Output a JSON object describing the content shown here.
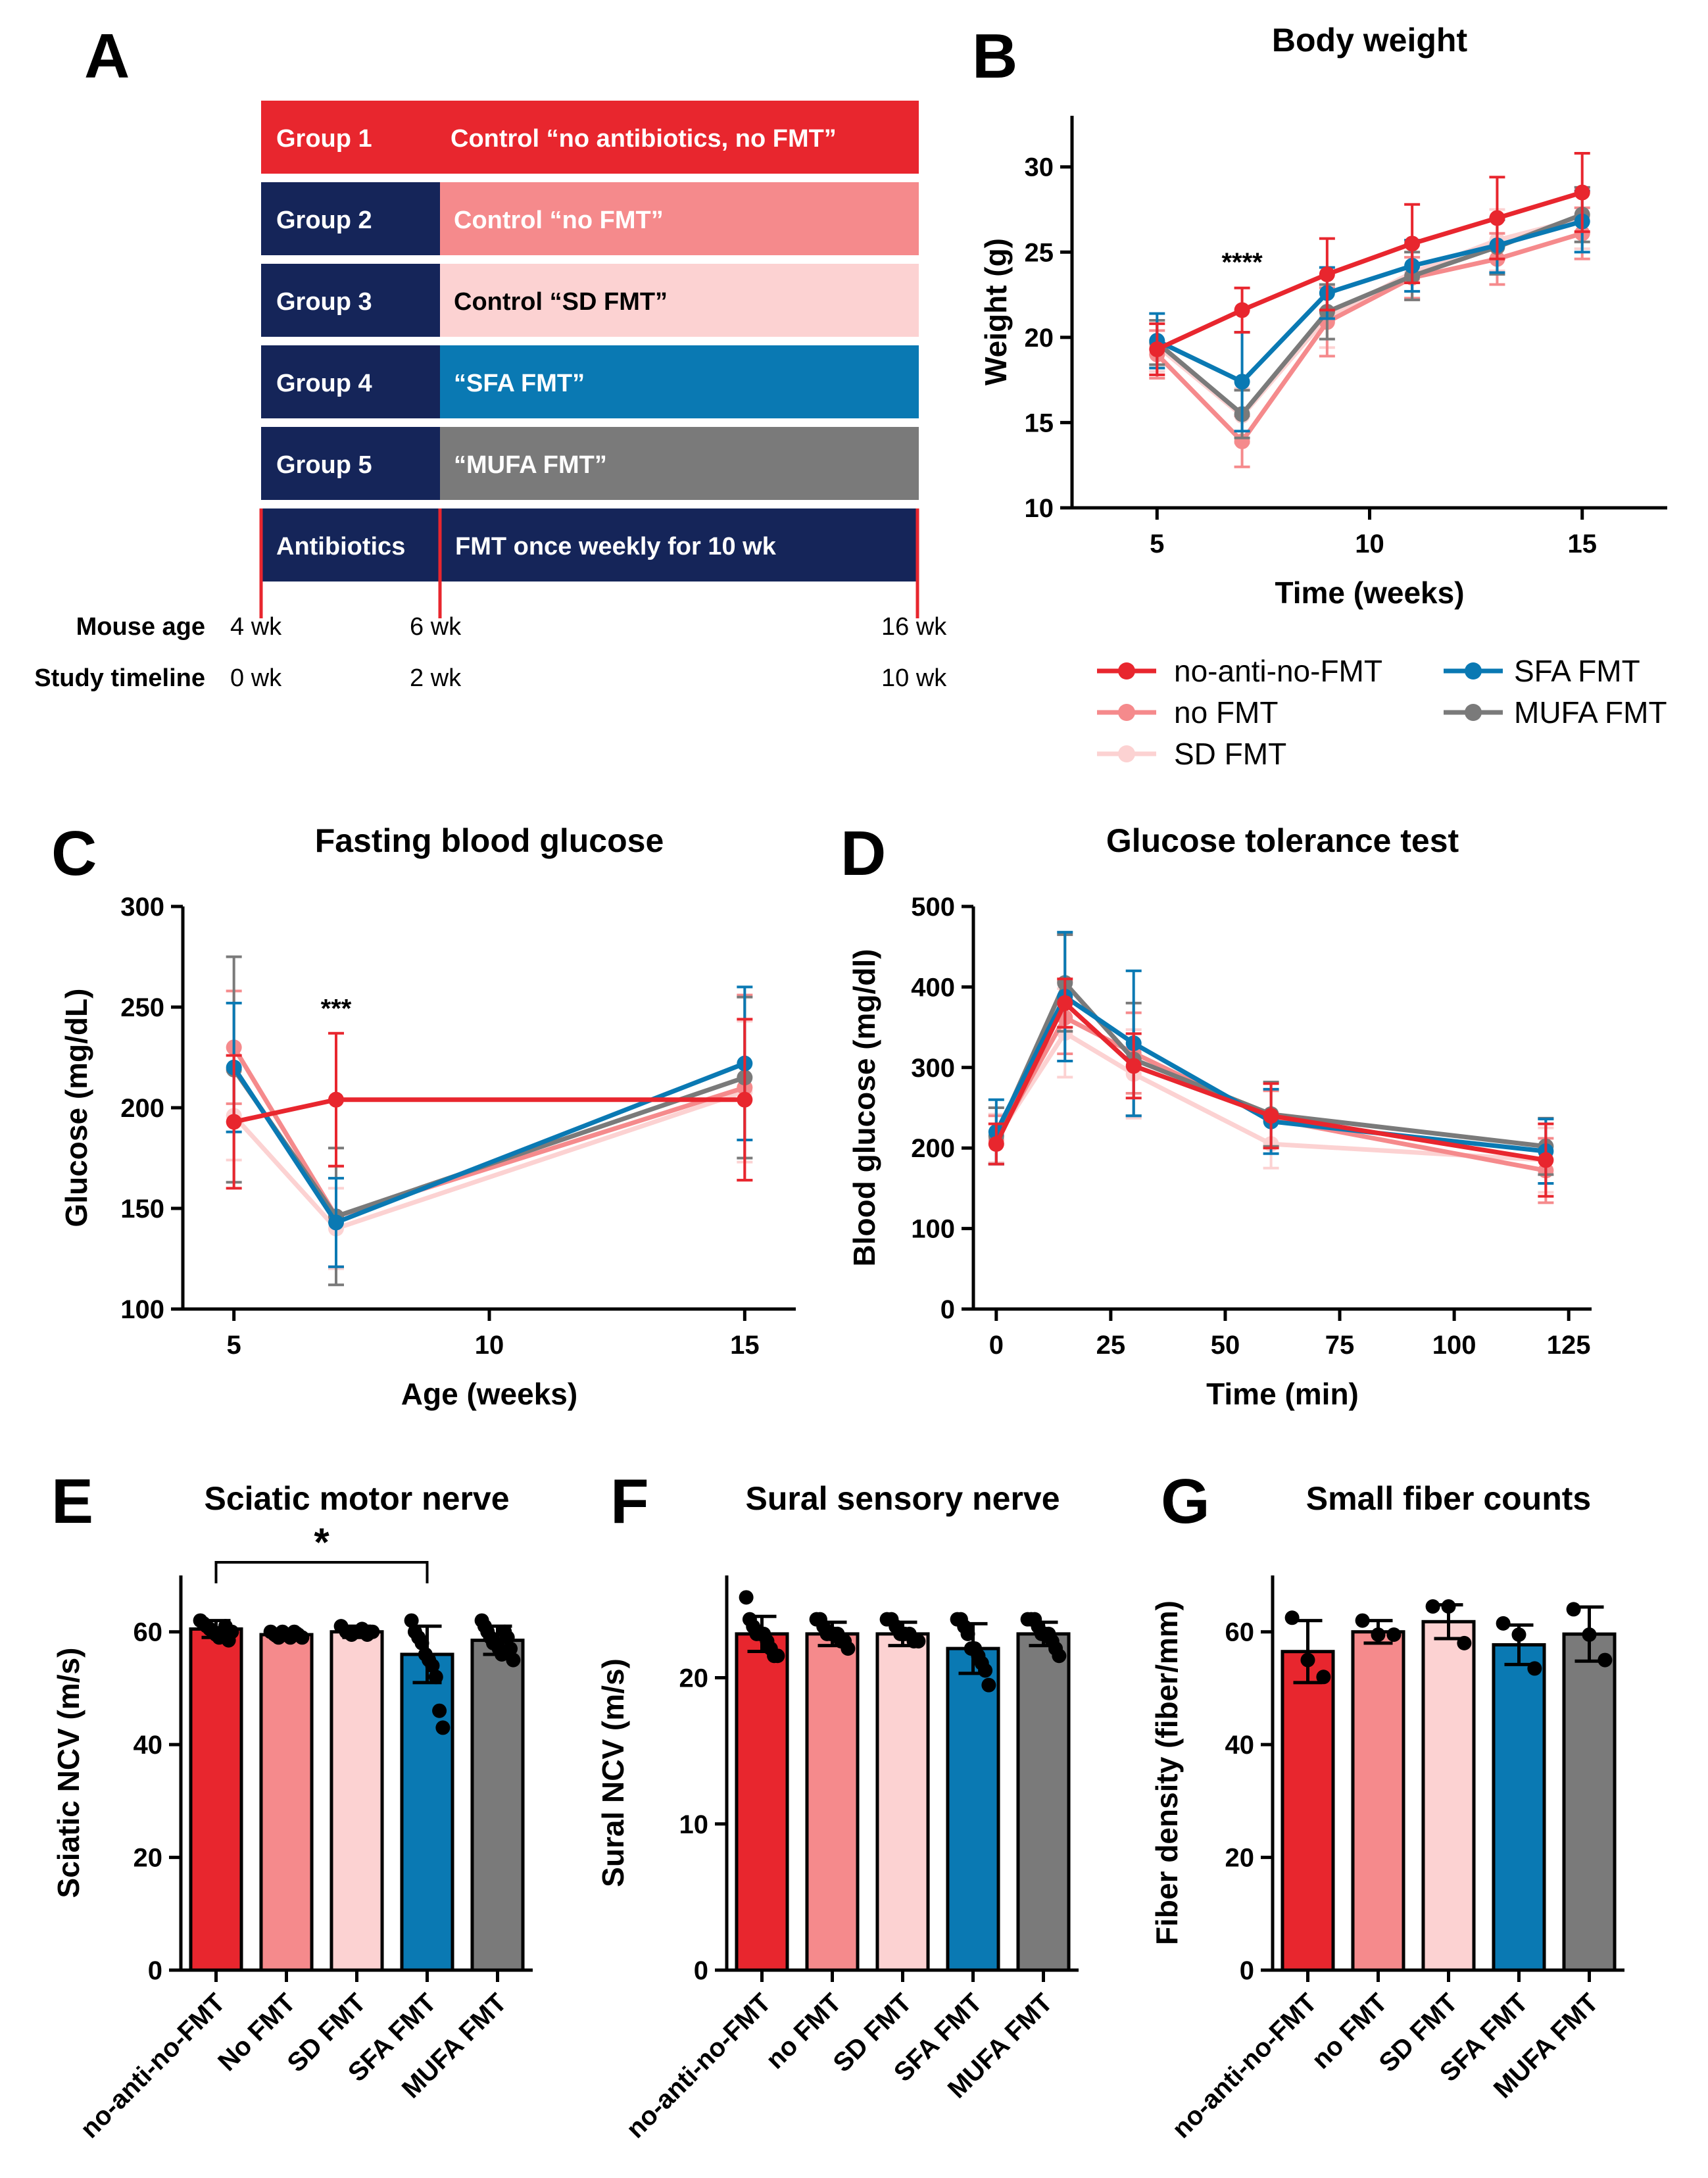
{
  "colors": {
    "group1": "#e8262e",
    "group2": "#f58a8c",
    "group3": "#fcd2d2",
    "group4": "#0a79b3",
    "group5": "#7a7a7a",
    "navy": "#152559",
    "red": "#e8262e"
  },
  "panel_letters": [
    "A",
    "B",
    "C",
    "D",
    "E",
    "F",
    "G"
  ],
  "panel_a": {
    "rows": [
      {
        "group": "Group 1",
        "desc": "Control “no antibiotics, no FMT”"
      },
      {
        "group": "Group 2",
        "desc": "Control “no FMT”"
      },
      {
        "group": "Group 3",
        "desc": "Control “SD FMT”"
      },
      {
        "group": "Group 4",
        "desc": "“SFA FMT”"
      },
      {
        "group": "Group 5",
        "desc": "“MUFA FMT”"
      }
    ],
    "timeline_left": "Antibiotics",
    "timeline_right": "FMT once weekly for 10 wk",
    "mouse_age_label": "Mouse age",
    "mouse_age_ticks": [
      "4 wk",
      "6 wk",
      "16 wk"
    ],
    "study_timeline_label": "Study timeline",
    "study_timeline_ticks": [
      "0 wk",
      "2 wk",
      "10 wk"
    ]
  },
  "legend": {
    "entries": [
      "no-anti-no-FMT",
      "no FMT",
      "SD FMT",
      "SFA FMT",
      "MUFA FMT"
    ]
  },
  "chart_data": [
    {
      "id": "B",
      "type": "line",
      "title": "Body weight",
      "xlabel": "Time (weeks)",
      "ylabel": "Weight (g)",
      "xlim": [
        3,
        17
      ],
      "ylim": [
        10,
        33
      ],
      "xticks": [
        5,
        10,
        15
      ],
      "yticks": [
        10,
        15,
        20,
        25,
        30
      ],
      "x": [
        5,
        7,
        9,
        11,
        13,
        15
      ],
      "annotation": {
        "text": "****",
        "x": 7,
        "y": 23.9
      },
      "series": [
        {
          "name": "no-anti-no-FMT",
          "values": [
            19.3,
            21.6,
            23.7,
            25.5,
            27.0,
            28.5
          ],
          "errors": [
            1.5,
            1.3,
            2.1,
            2.3,
            2.4,
            2.3
          ]
        },
        {
          "name": "no FMT",
          "values": [
            19.0,
            13.9,
            20.9,
            23.5,
            24.6,
            26.1
          ],
          "errors": [
            1.4,
            1.5,
            2.0,
            1.2,
            1.5,
            1.5
          ]
        },
        {
          "name": "SD FMT",
          "values": [
            19.5,
            15.4,
            21.2,
            23.8,
            25.7,
            27.0
          ],
          "errors": [
            1.5,
            1.6,
            1.8,
            1.6,
            1.8,
            1.8
          ]
        },
        {
          "name": "SFA FMT",
          "values": [
            19.8,
            17.4,
            22.6,
            24.2,
            25.4,
            26.8
          ],
          "errors": [
            1.6,
            2.9,
            1.5,
            1.5,
            1.6,
            1.8
          ]
        },
        {
          "name": "MUFA FMT",
          "values": [
            19.7,
            15.5,
            21.5,
            23.6,
            25.3,
            27.2
          ],
          "errors": [
            1.3,
            1.4,
            1.6,
            1.4,
            1.6,
            1.6
          ]
        }
      ]
    },
    {
      "id": "C",
      "type": "line",
      "title": "Fasting blood glucose",
      "xlabel": "Age (weeks)",
      "ylabel": "Glucose (mg/dL)",
      "xlim": [
        4,
        16
      ],
      "ylim": [
        100,
        300
      ],
      "xticks": [
        5,
        10,
        15
      ],
      "yticks": [
        100,
        150,
        200,
        250,
        300
      ],
      "x": [
        5,
        7,
        15
      ],
      "annotation": {
        "text": "***",
        "x": 7,
        "y": 245
      },
      "series": [
        {
          "name": "no-anti-no-FMT",
          "values": [
            193,
            204,
            204
          ],
          "errors": [
            33,
            33,
            40
          ]
        },
        {
          "name": "no FMT",
          "values": [
            230,
            146,
            210
          ],
          "errors": [
            28,
            25,
            46
          ]
        },
        {
          "name": "SD FMT",
          "values": [
            196,
            140,
            208
          ],
          "errors": [
            22,
            20,
            35
          ]
        },
        {
          "name": "SFA FMT",
          "values": [
            220,
            143,
            222
          ],
          "errors": [
            32,
            22,
            38
          ]
        },
        {
          "name": "MUFA FMT",
          "values": [
            219,
            146,
            215
          ],
          "errors": [
            56,
            34,
            40
          ]
        }
      ]
    },
    {
      "id": "D",
      "type": "line",
      "title": "Glucose tolerance test",
      "xlabel": "Time (min)",
      "ylabel": "Blood glucose (mg/dl)",
      "xlim": [
        -5,
        130
      ],
      "ylim": [
        0,
        500
      ],
      "xticks": [
        0,
        25,
        50,
        75,
        100,
        125
      ],
      "yticks": [
        0,
        100,
        200,
        300,
        400,
        500
      ],
      "x": [
        0,
        15,
        30,
        60,
        120
      ],
      "series": [
        {
          "name": "no-anti-no-FMT",
          "values": [
            205,
            380,
            302,
            240,
            185
          ],
          "errors": [
            25,
            30,
            40,
            40,
            45
          ]
        },
        {
          "name": "no FMT",
          "values": [
            210,
            362,
            318,
            236,
            172
          ],
          "errors": [
            30,
            45,
            50,
            35,
            40
          ]
        },
        {
          "name": "SD FMT",
          "values": [
            212,
            343,
            292,
            205,
            185
          ],
          "errors": [
            30,
            55,
            55,
            30,
            40
          ]
        },
        {
          "name": "SFA FMT",
          "values": [
            220,
            388,
            330,
            233,
            196
          ],
          "errors": [
            40,
            80,
            90,
            40,
            40
          ]
        },
        {
          "name": "MUFA FMT",
          "values": [
            215,
            405,
            310,
            242,
            202
          ],
          "errors": [
            35,
            60,
            70,
            40,
            35
          ]
        }
      ]
    },
    {
      "id": "E",
      "type": "bar",
      "title": "Sciatic motor nerve",
      "ylabel": "Sciatic NCV (m/s)",
      "ylim": [
        0,
        70
      ],
      "yticks": [
        0,
        20,
        40,
        60
      ],
      "categories": [
        "no-anti-no-FMT",
        "No FMT",
        "SD FMT",
        "SFA FMT",
        "MUFA FMT"
      ],
      "values": [
        60.5,
        59.5,
        60.0,
        56.0,
        58.5
      ],
      "errors": [
        1.5,
        1.0,
        1.0,
        5.0,
        2.5
      ],
      "points": [
        [
          62,
          61.5,
          61,
          60.5,
          60,
          59.5,
          59,
          60,
          61,
          58.5,
          60
        ],
        [
          60,
          59.5,
          59,
          60,
          59.5,
          59,
          60,
          59.5,
          59
        ],
        [
          61,
          60,
          59.5,
          60,
          60.5,
          59.5,
          60
        ],
        [
          62,
          60,
          59,
          58,
          56,
          55,
          54,
          52,
          46,
          43
        ],
        [
          62,
          61,
          60,
          59,
          58,
          58,
          57,
          56,
          60,
          59,
          57,
          55
        ]
      ],
      "bracket": {
        "from": 0,
        "to": 3,
        "text": "*"
      }
    },
    {
      "id": "F",
      "type": "bar",
      "title": "Sural sensory nerve",
      "ylabel": "Sural NCV (m/s)",
      "ylim": [
        0,
        27
      ],
      "yticks": [
        0,
        10,
        20
      ],
      "categories": [
        "no-anti-no-FMT",
        "no FMT",
        "SD FMT",
        "SFA FMT",
        "MUFA FMT"
      ],
      "values": [
        23.0,
        23.0,
        23.0,
        22.0,
        23.0
      ],
      "errors": [
        1.2,
        0.8,
        0.8,
        1.7,
        0.8
      ],
      "points": [
        [
          25.5,
          24,
          23.5,
          23,
          23,
          23,
          22.5,
          22,
          21.5,
          21.5
        ],
        [
          24,
          24,
          23.5,
          23,
          23,
          23,
          23,
          22.5,
          22.5,
          22
        ],
        [
          24,
          24,
          23.5,
          23,
          23,
          23,
          22.5,
          22.5
        ],
        [
          24,
          24,
          23.5,
          23,
          22,
          22,
          21.5,
          21,
          20.5,
          19.5
        ],
        [
          24,
          24,
          24,
          23.5,
          23,
          23,
          23,
          22.5,
          22,
          21.5
        ]
      ]
    },
    {
      "id": "G",
      "type": "bar",
      "title": "Small fiber counts",
      "ylabel": "Fiber density (fiber/mm)",
      "ylim": [
        0,
        70
      ],
      "yticks": [
        0,
        20,
        40,
        60
      ],
      "categories": [
        "no-anti-no-FMT",
        "no FMT",
        "SD FMT",
        "SFA FMT",
        "MUFA FMT"
      ],
      "values": [
        56.5,
        60.0,
        61.8,
        57.7,
        59.6
      ],
      "errors": [
        5.5,
        2.0,
        3.0,
        3.5,
        4.8
      ],
      "points": [
        [
          62.5,
          55,
          52
        ],
        [
          62,
          59.5,
          59.5
        ],
        [
          64.5,
          64.5,
          58
        ],
        [
          61.5,
          59.5,
          53.5
        ],
        [
          64,
          59.5,
          55
        ]
      ]
    }
  ]
}
